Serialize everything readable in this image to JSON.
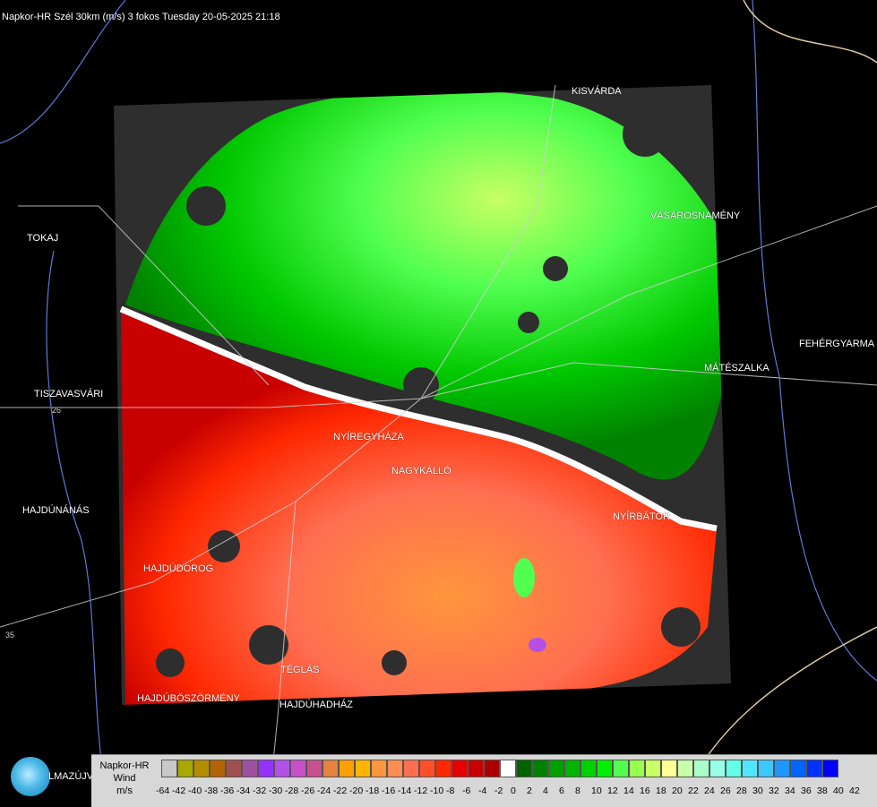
{
  "header": {
    "title": "Napkor-HR Szél 30km (m/s) 3 fokos Tuesday 20-05-2025 21:18"
  },
  "cities": {
    "kisvarda": "KISVÁRDA",
    "tokaj": "TOKAJ",
    "vasarosnameny": "VÁSÁROSNAMÉNY",
    "fehergyarmat": "FEHÉRGYARMA",
    "mateszalka": "MÁTÉSZALKA",
    "tiszavasvari": "TISZAVASVÁRI",
    "nyiregyhaza": "NYÍREGYHÁZA",
    "nagykallo": "NAGYKÁLLÓ",
    "hajdunanas": "HAJDÚNÁNÁS",
    "nyirbator": "NYÍRBÁTOR",
    "hajdudorog": "HAJDÚDOROG",
    "teglas": "TÉGLÁS",
    "hajduboszormeny": "HAJDÚBÖSZÖRMÉNY",
    "hajduhadhaz": "HAJDÚHADHÁZ",
    "hajdusamson": "LMAZÚJVÁR"
  },
  "road_numbers": {
    "r26": "26",
    "r35": "35"
  },
  "legend": {
    "title_line1": "Napkor-HR",
    "title_line2": "Wind",
    "title_line3": "m/s",
    "colors": [
      "#c8c8c8",
      "#a8a800",
      "#b48c00",
      "#b46400",
      "#a05050",
      "#a050a0",
      "#9632ff",
      "#b450e6",
      "#c850c8",
      "#c8508c",
      "#e6823c",
      "#ffa000",
      "#ffb400",
      "#ff963c",
      "#ff8c50",
      "#ff6e50",
      "#ff5028",
      "#ff2800",
      "#e60000",
      "#c80000",
      "#aa0000",
      "#ffffff",
      "#006400",
      "#008200",
      "#00a000",
      "#00b400",
      "#00d200",
      "#00f000",
      "#50ff50",
      "#96ff50",
      "#c8ff64",
      "#ffff96",
      "#c8ffaa",
      "#aaffc8",
      "#96ffe6",
      "#64ffe6",
      "#50e6ff",
      "#3cc8ff",
      "#1e96ff",
      "#0064ff",
      "#0032ff",
      "#0000ff"
    ],
    "ticks": [
      "-64",
      "-42",
      "-40",
      "-38",
      "-36",
      "-34",
      "-32",
      "-30",
      "-28",
      "-26",
      "-24",
      "-22",
      "-20",
      "-18",
      "-16",
      "-14",
      "-12",
      "-10",
      "-8",
      "-6",
      "-4",
      "-2",
      "0",
      "2",
      "4",
      "6",
      "8",
      "10",
      "12",
      "14",
      "16",
      "18",
      "20",
      "22",
      "24",
      "26",
      "28",
      "30",
      "32",
      "34",
      "36",
      "38",
      "40",
      "42"
    ]
  },
  "logo": {
    "icon": "napkor-logo-icon"
  }
}
